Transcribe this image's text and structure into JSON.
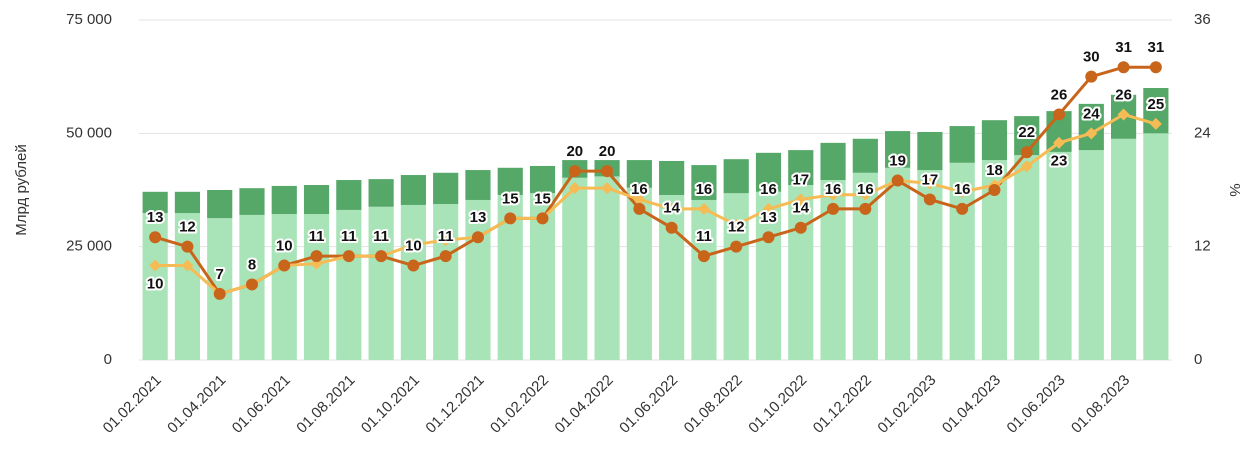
{
  "chart_data": {
    "type": "bar_line",
    "y_label": "Млрд рублей",
    "y2_label": "%",
    "categories": [
      "01.02.2021",
      null,
      "01.04.2021",
      null,
      "01.06.2021",
      null,
      "01.08.2021",
      null,
      "01.10.2021",
      null,
      "01.12.2021",
      null,
      "01.02.2022",
      null,
      "01.04.2022",
      null,
      "01.06.2022",
      null,
      "01.08.2022",
      null,
      "01.10.2022",
      null,
      "01.12.2022",
      null,
      "01.02.2023",
      null,
      "01.04.2023",
      null,
      "01.06.2023",
      null,
      "01.08.2023",
      null
    ],
    "ylim": [
      0,
      75000
    ],
    "yticks": [
      0,
      {
        "value": 25000,
        "label": "25 000"
      },
      {
        "value": 50000,
        "label": "50 000"
      },
      {
        "value": 75000,
        "label": "75 000"
      }
    ],
    "y2lim": [
      0,
      36
    ],
    "y2ticks": [
      0,
      12,
      24,
      36
    ],
    "grid": true,
    "series": [
      {
        "kind": "bar",
        "color": "#a8e4b8",
        "values": [
          32400,
          32400,
          31300,
          32000,
          32200,
          32200,
          33100,
          33800,
          34200,
          34400,
          35300,
          36400,
          36800,
          40200,
          40500,
          38000,
          36400,
          35300,
          36800,
          37100,
          38600,
          39700,
          41300,
          42400,
          41900,
          43500,
          44100,
          45200,
          45900,
          46300,
          48800,
          50000
        ]
      },
      {
        "kind": "bar",
        "color": "#56a868",
        "values": [
          4700,
          4700,
          6200,
          5900,
          6200,
          6400,
          6600,
          6100,
          6600,
          6900,
          6600,
          6000,
          6000,
          3900,
          3600,
          6100,
          7500,
          7700,
          7500,
          8600,
          7700,
          8200,
          7500,
          8100,
          8400,
          8100,
          8800,
          8600,
          9000,
          10200,
          9700,
          10000
        ]
      },
      {
        "kind": "line",
        "axis": "y2",
        "color": "#c8651b",
        "marker": "circle",
        "values": [
          13,
          12,
          7,
          8,
          10,
          11,
          11,
          11,
          10,
          11,
          13,
          15,
          15,
          20,
          20,
          16,
          14,
          11,
          12,
          13,
          14,
          16,
          16,
          19,
          17,
          16,
          18,
          22,
          26,
          30,
          31,
          31
        ]
      },
      {
        "kind": "line",
        "axis": "y2",
        "color": "#f5bb55",
        "marker": "diamond",
        "values": [
          10,
          10,
          7,
          8,
          10,
          10.2,
          11,
          11,
          12.2,
          12.7,
          13,
          15,
          15,
          18.2,
          18.2,
          17,
          16,
          16,
          14.3,
          16,
          17,
          17.5,
          17.5,
          19,
          18.7,
          17.8,
          18.5,
          20.5,
          23,
          24,
          26,
          25
        ],
        "value_labels": [
          "10",
          null,
          null,
          null,
          null,
          null,
          null,
          null,
          null,
          null,
          null,
          null,
          null,
          null,
          null,
          null,
          null,
          "16",
          null,
          "16",
          "17",
          null,
          null,
          null,
          null,
          null,
          null,
          null,
          "23",
          "24",
          "26",
          "25"
        ]
      }
    ]
  }
}
